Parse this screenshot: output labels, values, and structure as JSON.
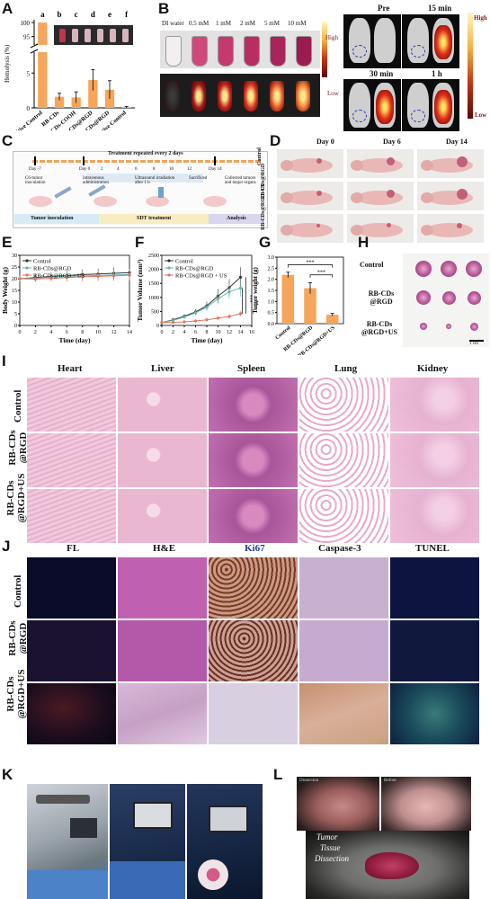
{
  "panels": {
    "A": {
      "label": "A",
      "ylabel": "Hemolysis (%)",
      "letters": [
        "a",
        "b",
        "c",
        "d",
        "e",
        "f"
      ],
      "tick_labels": [
        "Positive Control",
        "RB-CDs",
        "RB-CDs-COOH",
        "RB-CDs@RGD",
        "RB-CDs@RGD",
        "Negative Control"
      ]
    },
    "B": {
      "label": "B",
      "concentrations": [
        "DI water",
        "0.5 mM",
        "1 mM",
        "2 mM",
        "5 mM",
        "10 mM"
      ],
      "scale_high": "High",
      "scale_low": "Low",
      "timepoints": [
        "Pre",
        "15 min",
        "30 min",
        "1 h"
      ]
    },
    "C": {
      "label": "C",
      "title": "Treatment repeated every 2 days",
      "days": [
        "Day -7",
        "Day 0",
        "2",
        "4",
        "6",
        "8",
        "10",
        "12",
        "Day 14"
      ],
      "steps": [
        "C6-tumor inoculation",
        "Intravenous administration",
        "Ultrasound irradiation after 1 h",
        "Sacrificed",
        "Collected tumors and major organs"
      ],
      "phases": [
        "Tumor inoculation",
        "SDT treatment",
        "Analysis"
      ]
    },
    "D": {
      "label": "D",
      "days": [
        "Day 0",
        "Day 6",
        "Day 14"
      ],
      "rows": [
        "Control",
        "RB-CDs@RGD",
        "RB-CDs@RGD+US"
      ]
    },
    "E": {
      "label": "E"
    },
    "F": {
      "label": "F"
    },
    "G": {
      "label": "G"
    },
    "H": {
      "label": "H",
      "rows": [
        "Control",
        "RB-CDs @RGD",
        "RB-CDs @RGD+US"
      ],
      "scale": "1 cm"
    },
    "I": {
      "label": "I",
      "organs": [
        "Heart",
        "Liver",
        "Spleen",
        "Lung",
        "Kidney"
      ],
      "rows": [
        "Control",
        "RB-CDs @RGD",
        "RB-CDs @RGD+US"
      ]
    },
    "J": {
      "label": "J",
      "stains": [
        "FL",
        "H&E",
        "Ki67",
        "Caspase-3",
        "TUNEL"
      ],
      "rows": [
        "Control",
        "RB-CDs @RGD",
        "RB-CDs @RGD+US"
      ]
    },
    "K": {
      "label": "K"
    },
    "L": {
      "label": "L",
      "sub": [
        "Dissection",
        "Before"
      ],
      "caption": [
        "Tumor",
        "Tissue",
        "Dissection"
      ]
    }
  },
  "chart_data": [
    {
      "panel": "A",
      "type": "bar",
      "categories": [
        "Positive Control",
        "RB-CDs",
        "RB-CDs-COOH",
        "RB-CDs@RGD",
        "RB-CDs@RGD",
        "Negative Control"
      ],
      "values": [
        100,
        1.6,
        1.5,
        4.0,
        2.6,
        0.1
      ],
      "errors": [
        0,
        0.5,
        0.8,
        1.5,
        1.3,
        0.1
      ],
      "ylabel": "Hemolysis (%)",
      "yticks": [
        0,
        5,
        95,
        100
      ],
      "ylim_break": [
        [
          0,
          8
        ],
        [
          92,
          101
        ]
      ]
    },
    {
      "panel": "E",
      "type": "line",
      "xlabel": "Time (day)",
      "ylabel": "Body Weight (g)",
      "xlim": [
        0,
        14
      ],
      "ylim": [
        0,
        30
      ],
      "xticks": [
        0,
        2,
        4,
        6,
        8,
        10,
        12,
        14
      ],
      "yticks": [
        0,
        5,
        10,
        15,
        20,
        25,
        30
      ],
      "legend": "top-left",
      "x": [
        0,
        2,
        4,
        6,
        8,
        10,
        12,
        14
      ],
      "series": [
        {
          "name": "Control",
          "color": "#333333",
          "values": [
            20,
            20.5,
            21,
            21.3,
            21.8,
            22,
            22.3,
            22.6
          ],
          "err": [
            1.5,
            1.6,
            1.8,
            2,
            2.2,
            2.3,
            2.5,
            2.8
          ]
        },
        {
          "name": "RB-CDs@RGD",
          "color": "#5fb8b0",
          "values": [
            20,
            20.2,
            20.8,
            21,
            21.2,
            21.4,
            21.6,
            21.8
          ],
          "err": [
            1.2,
            1.4,
            1.6,
            1.8,
            2,
            2,
            2.2,
            2.4
          ]
        },
        {
          "name": "RB-CDs@RGD + US",
          "color": "#e4735e",
          "values": [
            20,
            19.8,
            20.2,
            20.5,
            20.8,
            21,
            21.2,
            21.5
          ],
          "err": [
            1.2,
            1.3,
            1.5,
            1.7,
            1.9,
            2,
            2.1,
            2.2
          ]
        }
      ]
    },
    {
      "panel": "F",
      "type": "line",
      "xlabel": "Time (day)",
      "ylabel": "Tumor Volume (mm³)",
      "xlim": [
        0,
        16
      ],
      "ylim": [
        0,
        2500
      ],
      "xticks": [
        0,
        2,
        4,
        6,
        8,
        10,
        12,
        14,
        16
      ],
      "yticks": [
        0,
        500,
        1000,
        1500,
        2000,
        2500
      ],
      "legend": "top-left",
      "significance": [
        "***",
        "**"
      ],
      "x": [
        0,
        2,
        4,
        6,
        8,
        10,
        12,
        14
      ],
      "series": [
        {
          "name": "Control",
          "color": "#333333",
          "values": [
            100,
            200,
            330,
            480,
            700,
            1050,
            1350,
            1720
          ],
          "err": [
            20,
            40,
            60,
            100,
            150,
            250,
            300,
            350
          ]
        },
        {
          "name": "RB-CDs@RGD",
          "color": "#5fb8b0",
          "values": [
            100,
            180,
            300,
            450,
            650,
            950,
            1200,
            1330
          ],
          "err": [
            20,
            40,
            60,
            90,
            130,
            200,
            250,
            300
          ]
        },
        {
          "name": "RB-CDs@RGD + US",
          "color": "#e4735e",
          "values": [
            100,
            110,
            130,
            160,
            200,
            260,
            320,
            420
          ],
          "err": [
            20,
            25,
            30,
            40,
            50,
            60,
            80,
            100
          ]
        }
      ]
    },
    {
      "panel": "G",
      "type": "bar",
      "categories": [
        "Control",
        "RB-CDs@RGD",
        "RB-CDs@RGD+US"
      ],
      "values": [
        2.2,
        1.6,
        0.4
      ],
      "errors": [
        0.12,
        0.25,
        0.06
      ],
      "ylabel": "Tumor weight (g)",
      "ylim": [
        0,
        3
      ],
      "yticks": [
        0.0,
        0.5,
        1.0,
        1.5,
        2.0,
        2.5,
        3.0
      ],
      "significance": [
        "***",
        "***"
      ]
    }
  ]
}
